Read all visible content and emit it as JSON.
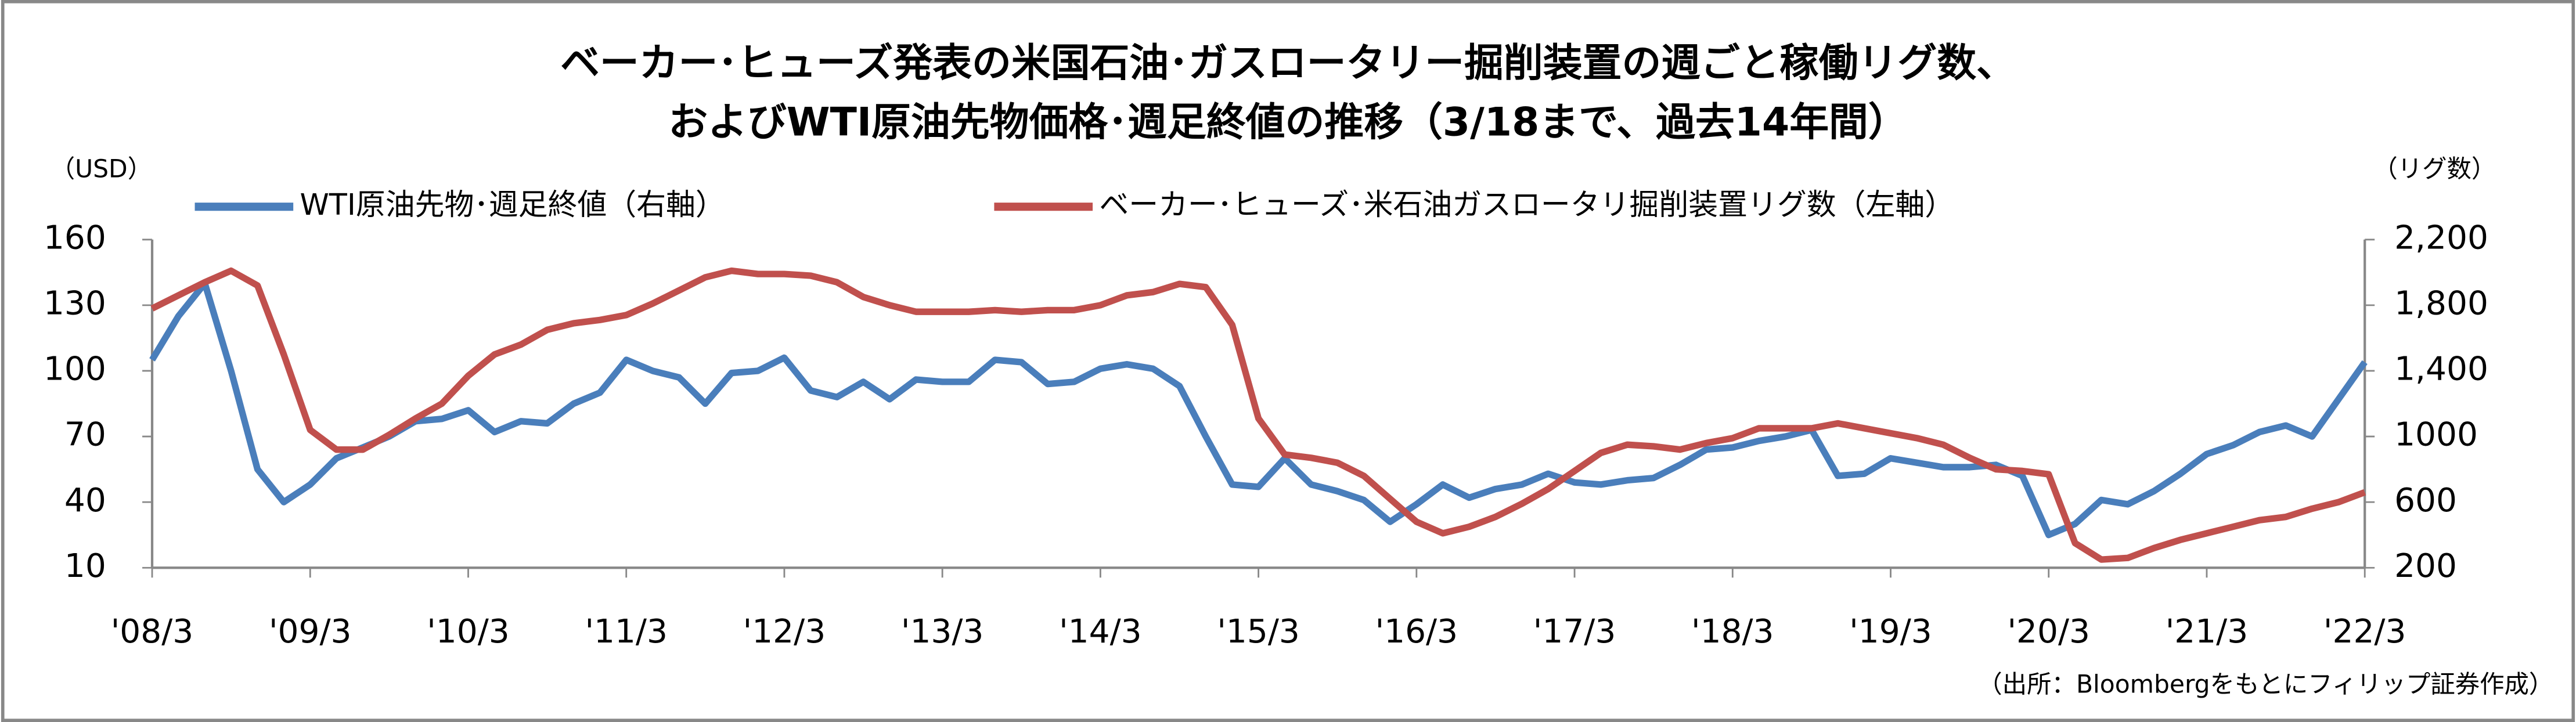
{
  "chart_data": {
    "type": "line",
    "title": [
      "ベーカー･ヒューズ発表の米国石油･ガスロータリー掘削装置の週ごと稼働リグ数、",
      "およびWTI原油先物価格･週足終値の推移（3/18まで、過去14年間）"
    ],
    "y_label": "（USD）",
    "y2_label": "（リグ数）",
    "note": "（出所：Bloombergをもとにフィリップ証券作成）",
    "x": [
      "2008-03",
      "2008-05",
      "2008-07",
      "2008-09",
      "2008-11",
      "2009-01",
      "2009-03",
      "2009-05",
      "2009-07",
      "2009-09",
      "2009-11",
      "2010-01",
      "2010-03",
      "2010-05",
      "2010-07",
      "2010-09",
      "2010-11",
      "2011-01",
      "2011-03",
      "2011-05",
      "2011-07",
      "2011-09",
      "2011-11",
      "2012-01",
      "2012-03",
      "2012-05",
      "2012-07",
      "2012-09",
      "2012-11",
      "2013-01",
      "2013-03",
      "2013-05",
      "2013-07",
      "2013-09",
      "2013-11",
      "2014-01",
      "2014-03",
      "2014-05",
      "2014-07",
      "2014-09",
      "2014-11",
      "2015-01",
      "2015-03",
      "2015-05",
      "2015-07",
      "2015-09",
      "2015-11",
      "2016-01",
      "2016-03",
      "2016-05",
      "2016-07",
      "2016-09",
      "2016-11",
      "2017-01",
      "2017-03",
      "2017-05",
      "2017-07",
      "2017-09",
      "2017-11",
      "2018-01",
      "2018-03",
      "2018-05",
      "2018-07",
      "2018-09",
      "2018-11",
      "2019-01",
      "2019-03",
      "2019-05",
      "2019-07",
      "2019-09",
      "2019-11",
      "2020-01",
      "2020-03",
      "2020-05",
      "2020-07",
      "2020-09",
      "2020-11",
      "2021-01",
      "2021-03",
      "2021-05",
      "2021-07",
      "2021-09",
      "2021-11",
      "2022-01",
      "2022-03"
    ],
    "series": [
      {
        "name": "WTI原油先物･週足終値（右軸）",
        "color": "#4a7ebb",
        "axis": "y",
        "values": [
          105,
          125,
          140,
          100,
          55,
          40,
          48,
          60,
          65,
          70,
          77,
          78,
          82,
          72,
          77,
          76,
          85,
          90,
          105,
          100,
          97,
          85,
          99,
          100,
          106,
          91,
          88,
          95,
          87,
          96,
          95,
          95,
          105,
          104,
          94,
          95,
          101,
          103,
          101,
          93,
          70,
          48,
          47,
          60,
          48,
          45,
          41,
          31,
          39,
          48,
          42,
          46,
          48,
          53,
          49,
          48,
          50,
          51,
          57,
          64,
          65,
          68,
          70,
          73,
          52,
          53,
          60,
          58,
          56,
          56,
          57,
          52,
          25,
          30,
          41,
          39,
          45,
          53,
          62,
          66,
          72,
          75,
          70,
          87,
          104
        ]
      },
      {
        "name": "ベーカー･ヒューズ･米石油ガスロータリ掘削装置リグ数（左軸）",
        "color": "#c0504d",
        "axis": "y2",
        "values": [
          1780,
          1860,
          1940,
          2010,
          1920,
          1500,
          1040,
          920,
          920,
          1010,
          1110,
          1200,
          1370,
          1500,
          1560,
          1650,
          1690,
          1710,
          1740,
          1810,
          1890,
          1970,
          2010,
          1990,
          1990,
          1980,
          1940,
          1850,
          1800,
          1760,
          1760,
          1760,
          1770,
          1760,
          1770,
          1770,
          1800,
          1860,
          1880,
          1930,
          1910,
          1680,
          1110,
          890,
          870,
          840,
          760,
          620,
          480,
          410,
          450,
          510,
          590,
          680,
          790,
          900,
          950,
          940,
          920,
          960,
          990,
          1050,
          1050,
          1050,
          1080,
          1050,
          1020,
          990,
          950,
          870,
          800,
          790,
          770,
          350,
          250,
          260,
          320,
          370,
          410,
          450,
          490,
          510,
          560,
          600,
          660
        ]
      }
    ],
    "ylim": [
      10,
      160
    ],
    "yticks": [
      10,
      40,
      70,
      100,
      130,
      160
    ],
    "y2lim": [
      200,
      2200
    ],
    "y2ticks": [
      200,
      600,
      1000,
      {
        "value": 1400,
        "label": "1,400"
      },
      {
        "value": 1800,
        "label": "1,800"
      },
      {
        "value": 2200,
        "label": "2,200"
      }
    ],
    "xticks": [
      {
        "value": "2008-03",
        "label": "'08/3"
      },
      {
        "value": "2009-03",
        "label": "'09/3"
      },
      {
        "value": "2010-03",
        "label": "'10/3"
      },
      {
        "value": "2011-03",
        "label": "'11/3"
      },
      {
        "value": "2012-03",
        "label": "'12/3"
      },
      {
        "value": "2013-03",
        "label": "'13/3"
      },
      {
        "value": "2014-03",
        "label": "'14/3"
      },
      {
        "value": "2015-03",
        "label": "'15/3"
      },
      {
        "value": "2016-03",
        "label": "'16/3"
      },
      {
        "value": "2017-03",
        "label": "'17/3"
      },
      {
        "value": "2018-03",
        "label": "'18/3"
      },
      {
        "value": "2019-03",
        "label": "'19/3"
      },
      {
        "value": "2020-03",
        "label": "'20/3"
      },
      {
        "value": "2021-03",
        "label": "'21/3"
      },
      {
        "value": "2022-03",
        "label": "'22/3"
      }
    ],
    "xlim": [
      "2008-03",
      "2022-03"
    ]
  }
}
